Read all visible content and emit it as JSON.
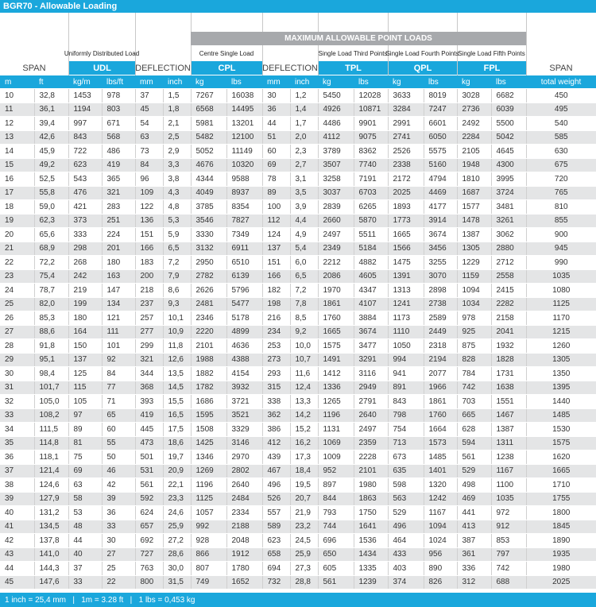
{
  "title": "BGR70 - Allowable Loading",
  "header": {
    "group_title": "MAXIMUM ALLOWABLE POINT LOADS",
    "descriptions": [
      "Uniformly Distributed Load",
      "Centre Single Load",
      "Single Load Third Points",
      "Single Load Fourth Points",
      "Single Load Fifth Points"
    ],
    "labels": [
      "SPAN",
      "UDL",
      "DEFLECTION",
      "CPL",
      "DEFLECTION",
      "TPL",
      "QPL",
      "FPL",
      "SPAN"
    ],
    "units": [
      "m",
      "ft",
      "kg/m",
      "lbs/ft",
      "mm",
      "inch",
      "kg",
      "lbs",
      "mm",
      "inch",
      "kg",
      "lbs",
      "kg",
      "lbs",
      "kg",
      "lbs",
      "total weight"
    ]
  },
  "table": {
    "rows": [
      [
        "10",
        "32,8",
        "1453",
        "978",
        "37",
        "1,5",
        "7267",
        "16038",
        "30",
        "1,2",
        "5450",
        "12028",
        "3633",
        "8019",
        "3028",
        "6682",
        "450"
      ],
      [
        "11",
        "36,1",
        "1194",
        "803",
        "45",
        "1,8",
        "6568",
        "14495",
        "36",
        "1,4",
        "4926",
        "10871",
        "3284",
        "7247",
        "2736",
        "6039",
        "495"
      ],
      [
        "12",
        "39,4",
        "997",
        "671",
        "54",
        "2,1",
        "5981",
        "13201",
        "44",
        "1,7",
        "4486",
        "9901",
        "2991",
        "6601",
        "2492",
        "5500",
        "540"
      ],
      [
        "13",
        "42,6",
        "843",
        "568",
        "63",
        "2,5",
        "5482",
        "12100",
        "51",
        "2,0",
        "4112",
        "9075",
        "2741",
        "6050",
        "2284",
        "5042",
        "585"
      ],
      [
        "14",
        "45,9",
        "722",
        "486",
        "73",
        "2,9",
        "5052",
        "11149",
        "60",
        "2,3",
        "3789",
        "8362",
        "2526",
        "5575",
        "2105",
        "4645",
        "630"
      ],
      [
        "15",
        "49,2",
        "623",
        "419",
        "84",
        "3,3",
        "4676",
        "10320",
        "69",
        "2,7",
        "3507",
        "7740",
        "2338",
        "5160",
        "1948",
        "4300",
        "675"
      ],
      [
        "16",
        "52,5",
        "543",
        "365",
        "96",
        "3,8",
        "4344",
        "9588",
        "78",
        "3,1",
        "3258",
        "7191",
        "2172",
        "4794",
        "1810",
        "3995",
        "720"
      ],
      [
        "17",
        "55,8",
        "476",
        "321",
        "109",
        "4,3",
        "4049",
        "8937",
        "89",
        "3,5",
        "3037",
        "6703",
        "2025",
        "4469",
        "1687",
        "3724",
        "765"
      ],
      [
        "18",
        "59,0",
        "421",
        "283",
        "122",
        "4,8",
        "3785",
        "8354",
        "100",
        "3,9",
        "2839",
        "6265",
        "1893",
        "4177",
        "1577",
        "3481",
        "810"
      ],
      [
        "19",
        "62,3",
        "373",
        "251",
        "136",
        "5,3",
        "3546",
        "7827",
        "112",
        "4,4",
        "2660",
        "5870",
        "1773",
        "3914",
        "1478",
        "3261",
        "855"
      ],
      [
        "20",
        "65,6",
        "333",
        "224",
        "151",
        "5,9",
        "3330",
        "7349",
        "124",
        "4,9",
        "2497",
        "5511",
        "1665",
        "3674",
        "1387",
        "3062",
        "900"
      ],
      [
        "21",
        "68,9",
        "298",
        "201",
        "166",
        "6,5",
        "3132",
        "6911",
        "137",
        "5,4",
        "2349",
        "5184",
        "1566",
        "3456",
        "1305",
        "2880",
        "945"
      ],
      [
        "22",
        "72,2",
        "268",
        "180",
        "183",
        "7,2",
        "2950",
        "6510",
        "151",
        "6,0",
        "2212",
        "4882",
        "1475",
        "3255",
        "1229",
        "2712",
        "990"
      ],
      [
        "23",
        "75,4",
        "242",
        "163",
        "200",
        "7,9",
        "2782",
        "6139",
        "166",
        "6,5",
        "2086",
        "4605",
        "1391",
        "3070",
        "1159",
        "2558",
        "1035"
      ],
      [
        "24",
        "78,7",
        "219",
        "147",
        "218",
        "8,6",
        "2626",
        "5796",
        "182",
        "7,2",
        "1970",
        "4347",
        "1313",
        "2898",
        "1094",
        "2415",
        "1080"
      ],
      [
        "25",
        "82,0",
        "199",
        "134",
        "237",
        "9,3",
        "2481",
        "5477",
        "198",
        "7,8",
        "1861",
        "4107",
        "1241",
        "2738",
        "1034",
        "2282",
        "1125"
      ],
      [
        "26",
        "85,3",
        "180",
        "121",
        "257",
        "10,1",
        "2346",
        "5178",
        "216",
        "8,5",
        "1760",
        "3884",
        "1173",
        "2589",
        "978",
        "2158",
        "1170"
      ],
      [
        "27",
        "88,6",
        "164",
        "111",
        "277",
        "10,9",
        "2220",
        "4899",
        "234",
        "9,2",
        "1665",
        "3674",
        "1110",
        "2449",
        "925",
        "2041",
        "1215"
      ],
      [
        "28",
        "91,8",
        "150",
        "101",
        "299",
        "11,8",
        "2101",
        "4636",
        "253",
        "10,0",
        "1575",
        "3477",
        "1050",
        "2318",
        "875",
        "1932",
        "1260"
      ],
      [
        "29",
        "95,1",
        "137",
        "92",
        "321",
        "12,6",
        "1988",
        "4388",
        "273",
        "10,7",
        "1491",
        "3291",
        "994",
        "2194",
        "828",
        "1828",
        "1305"
      ],
      [
        "30",
        "98,4",
        "125",
        "84",
        "344",
        "13,5",
        "1882",
        "4154",
        "293",
        "11,6",
        "1412",
        "3116",
        "941",
        "2077",
        "784",
        "1731",
        "1350"
      ],
      [
        "31",
        "101,7",
        "115",
        "77",
        "368",
        "14,5",
        "1782",
        "3932",
        "315",
        "12,4",
        "1336",
        "2949",
        "891",
        "1966",
        "742",
        "1638",
        "1395"
      ],
      [
        "32",
        "105,0",
        "105",
        "71",
        "393",
        "15,5",
        "1686",
        "3721",
        "338",
        "13,3",
        "1265",
        "2791",
        "843",
        "1861",
        "703",
        "1551",
        "1440"
      ],
      [
        "33",
        "108,2",
        "97",
        "65",
        "419",
        "16,5",
        "1595",
        "3521",
        "362",
        "14,2",
        "1196",
        "2640",
        "798",
        "1760",
        "665",
        "1467",
        "1485"
      ],
      [
        "34",
        "111,5",
        "89",
        "60",
        "445",
        "17,5",
        "1508",
        "3329",
        "386",
        "15,2",
        "1131",
        "2497",
        "754",
        "1664",
        "628",
        "1387",
        "1530"
      ],
      [
        "35",
        "114,8",
        "81",
        "55",
        "473",
        "18,6",
        "1425",
        "3146",
        "412",
        "16,2",
        "1069",
        "2359",
        "713",
        "1573",
        "594",
        "1311",
        "1575"
      ],
      [
        "36",
        "118,1",
        "75",
        "50",
        "501",
        "19,7",
        "1346",
        "2970",
        "439",
        "17,3",
        "1009",
        "2228",
        "673",
        "1485",
        "561",
        "1238",
        "1620"
      ],
      [
        "37",
        "121,4",
        "69",
        "46",
        "531",
        "20,9",
        "1269",
        "2802",
        "467",
        "18,4",
        "952",
        "2101",
        "635",
        "1401",
        "529",
        "1167",
        "1665"
      ],
      [
        "38",
        "124,6",
        "63",
        "42",
        "561",
        "22,1",
        "1196",
        "2640",
        "496",
        "19,5",
        "897",
        "1980",
        "598",
        "1320",
        "498",
        "1100",
        "1710"
      ],
      [
        "39",
        "127,9",
        "58",
        "39",
        "592",
        "23,3",
        "1125",
        "2484",
        "526",
        "20,7",
        "844",
        "1863",
        "563",
        "1242",
        "469",
        "1035",
        "1755"
      ],
      [
        "40",
        "131,2",
        "53",
        "36",
        "624",
        "24,6",
        "1057",
        "2334",
        "557",
        "21,9",
        "793",
        "1750",
        "529",
        "1167",
        "441",
        "972",
        "1800"
      ],
      [
        "41",
        "134,5",
        "48",
        "33",
        "657",
        "25,9",
        "992",
        "2188",
        "589",
        "23,2",
        "744",
        "1641",
        "496",
        "1094",
        "413",
        "912",
        "1845"
      ],
      [
        "42",
        "137,8",
        "44",
        "30",
        "692",
        "27,2",
        "928",
        "2048",
        "623",
        "24,5",
        "696",
        "1536",
        "464",
        "1024",
        "387",
        "853",
        "1890"
      ],
      [
        "43",
        "141,0",
        "40",
        "27",
        "727",
        "28,6",
        "866",
        "1912",
        "658",
        "25,9",
        "650",
        "1434",
        "433",
        "956",
        "361",
        "797",
        "1935"
      ],
      [
        "44",
        "144,3",
        "37",
        "25",
        "763",
        "30,0",
        "807",
        "1780",
        "694",
        "27,3",
        "605",
        "1335",
        "403",
        "890",
        "336",
        "742",
        "1980"
      ],
      [
        "45",
        "147,6",
        "33",
        "22",
        "800",
        "31,5",
        "749",
        "1652",
        "732",
        "28,8",
        "561",
        "1239",
        "374",
        "826",
        "312",
        "688",
        "2025"
      ]
    ]
  },
  "footer": "1 inch = 25,4 mm   |   1m = 3.28 ft   |   1 lbs = 0,453 kg"
}
